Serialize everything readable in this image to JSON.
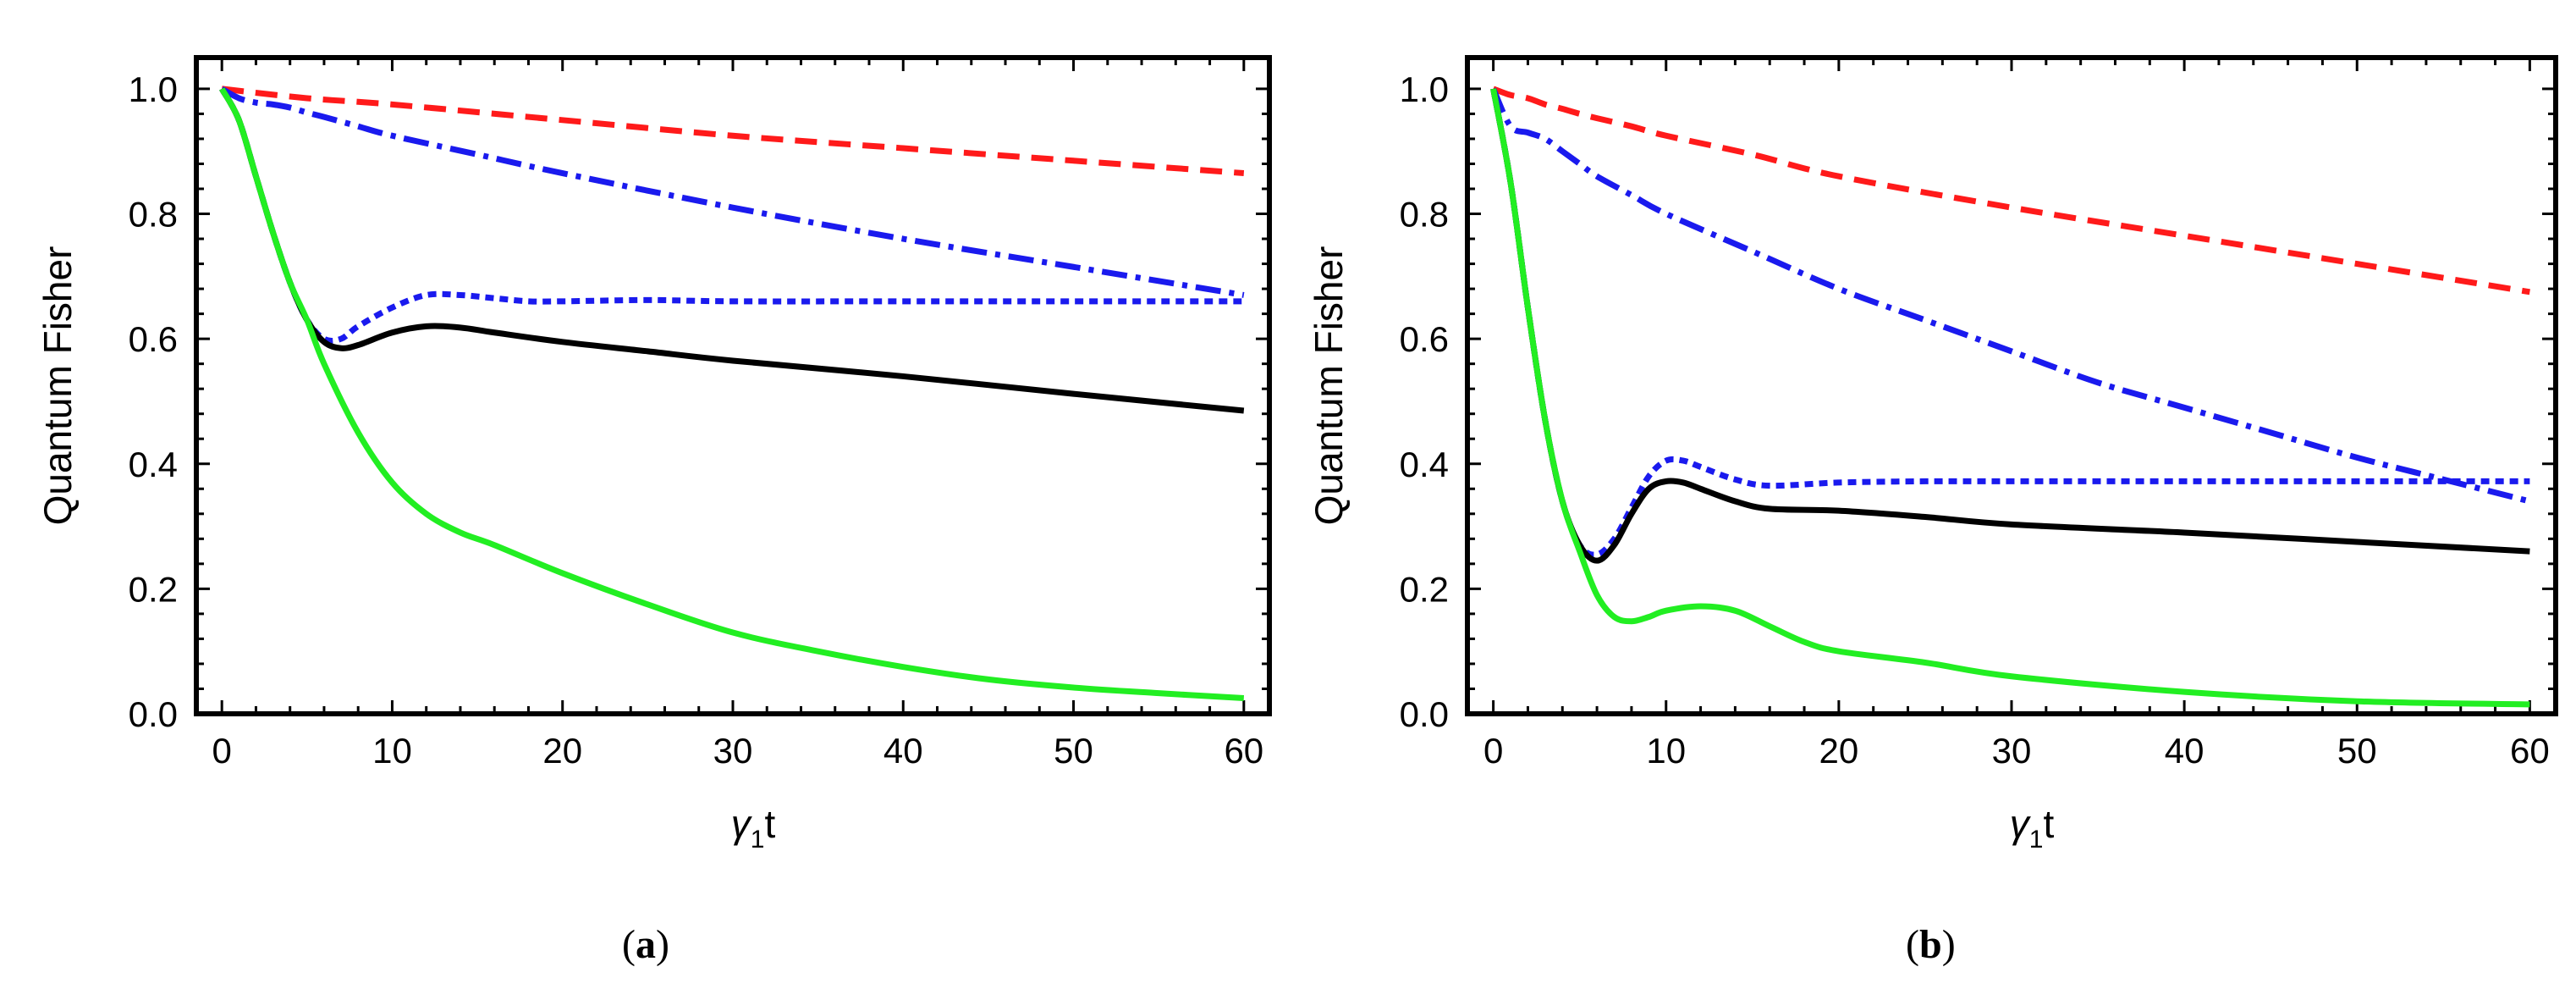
{
  "chart_data": [
    {
      "type": "line",
      "panel_label": "a",
      "xlabel_main": "γ",
      "xlabel_sub": "1",
      "xlabel_suffix": "t",
      "ylabel": "Quantum Fisher",
      "xlim": [
        -1.5,
        61.5
      ],
      "ylim": [
        0.0,
        1.05
      ],
      "xticks": [
        0,
        10,
        20,
        30,
        40,
        50,
        60
      ],
      "xtick_labels": [
        "0",
        "10",
        "20",
        "30",
        "40",
        "50",
        "60"
      ],
      "yticks": [
        0.0,
        0.2,
        0.4,
        0.6,
        0.8,
        1.0
      ],
      "ytick_labels": [
        "0.0",
        "0.2",
        "0.4",
        "0.6",
        "0.8",
        "1.0"
      ],
      "series": [
        {
          "name": "red-dashed",
          "color": "#ff1a1a",
          "style": "dashed",
          "x": [
            0,
            5,
            10,
            20,
            30,
            40,
            50,
            60
          ],
          "y": [
            1.0,
            0.985,
            0.975,
            0.95,
            0.925,
            0.905,
            0.885,
            0.865
          ]
        },
        {
          "name": "blue-dashdot",
          "color": "#1a1aee",
          "style": "dashdot",
          "x": [
            0,
            1,
            2,
            3,
            4,
            5,
            6,
            8,
            10,
            15,
            20,
            30,
            40,
            50,
            60
          ],
          "y": [
            1.0,
            0.985,
            0.978,
            0.975,
            0.97,
            0.962,
            0.955,
            0.94,
            0.925,
            0.895,
            0.865,
            0.81,
            0.76,
            0.715,
            0.67
          ]
        },
        {
          "name": "blue-dotted",
          "color": "#1a1aee",
          "style": "dotted",
          "x": [
            0,
            1,
            2,
            3,
            4,
            5,
            6,
            7,
            8,
            10,
            12,
            14,
            16,
            18,
            20,
            25,
            30,
            40,
            50,
            60
          ],
          "y": [
            1.0,
            0.95,
            0.86,
            0.77,
            0.69,
            0.63,
            0.6,
            0.6,
            0.62,
            0.65,
            0.67,
            0.67,
            0.665,
            0.66,
            0.66,
            0.662,
            0.66,
            0.66,
            0.66,
            0.66
          ]
        },
        {
          "name": "black-solid",
          "color": "#000000",
          "style": "solid",
          "x": [
            0,
            1,
            2,
            3,
            4,
            5,
            6,
            7,
            8,
            10,
            12,
            14,
            16,
            20,
            25,
            30,
            40,
            50,
            60
          ],
          "y": [
            1.0,
            0.95,
            0.86,
            0.77,
            0.69,
            0.63,
            0.595,
            0.585,
            0.59,
            0.61,
            0.62,
            0.618,
            0.61,
            0.595,
            0.58,
            0.565,
            0.54,
            0.512,
            0.485
          ]
        },
        {
          "name": "green-solid",
          "color": "#22ee22",
          "style": "solid",
          "x": [
            0,
            1,
            2,
            3,
            4,
            5,
            6,
            8,
            10,
            12,
            14,
            16,
            20,
            25,
            30,
            35,
            40,
            45,
            50,
            55,
            60
          ],
          "y": [
            1.0,
            0.95,
            0.86,
            0.77,
            0.69,
            0.63,
            0.56,
            0.45,
            0.37,
            0.32,
            0.29,
            0.27,
            0.225,
            0.175,
            0.13,
            0.1,
            0.075,
            0.055,
            0.042,
            0.033,
            0.025
          ]
        }
      ]
    },
    {
      "type": "line",
      "panel_label": "b",
      "xlabel_main": "γ",
      "xlabel_sub": "1",
      "xlabel_suffix": "t",
      "ylabel": "Quantum Fisher",
      "xlim": [
        -1.5,
        61.5
      ],
      "ylim": [
        0.0,
        1.05
      ],
      "xticks": [
        0,
        10,
        20,
        30,
        40,
        50,
        60
      ],
      "xtick_labels": [
        "0",
        "10",
        "20",
        "30",
        "40",
        "50",
        "60"
      ],
      "yticks": [
        0.0,
        0.2,
        0.4,
        0.6,
        0.8,
        1.0
      ],
      "ytick_labels": [
        "0.0",
        "0.2",
        "0.4",
        "0.6",
        "0.8",
        "1.0"
      ],
      "series": [
        {
          "name": "red-dashed",
          "color": "#ff1a1a",
          "style": "dashed",
          "x": [
            0,
            1,
            2,
            3,
            4,
            5,
            6,
            8,
            10,
            15,
            20,
            30,
            40,
            50,
            60
          ],
          "y": [
            1.0,
            0.99,
            0.985,
            0.975,
            0.968,
            0.96,
            0.953,
            0.94,
            0.925,
            0.895,
            0.86,
            0.81,
            0.765,
            0.72,
            0.675
          ]
        },
        {
          "name": "blue-dashdot",
          "color": "#1a1aee",
          "style": "dashdot",
          "x": [
            0,
            1,
            2,
            3,
            4,
            5,
            6,
            8,
            10,
            15,
            20,
            25,
            30,
            35,
            40,
            45,
            50,
            55,
            60
          ],
          "y": [
            1.0,
            0.94,
            0.93,
            0.92,
            0.9,
            0.88,
            0.86,
            0.83,
            0.8,
            0.74,
            0.68,
            0.63,
            0.58,
            0.53,
            0.49,
            0.45,
            0.41,
            0.375,
            0.34
          ]
        },
        {
          "name": "blue-dotted",
          "color": "#1a1aee",
          "style": "dotted",
          "x": [
            0,
            1,
            2,
            3,
            4,
            5,
            6,
            7,
            8,
            9,
            10,
            11,
            12,
            14,
            16,
            20,
            25,
            30,
            40,
            50,
            60
          ],
          "y": [
            1.0,
            0.85,
            0.65,
            0.47,
            0.34,
            0.27,
            0.255,
            0.28,
            0.33,
            0.38,
            0.405,
            0.405,
            0.395,
            0.375,
            0.365,
            0.37,
            0.372,
            0.372,
            0.372,
            0.372,
            0.372
          ]
        },
        {
          "name": "black-solid",
          "color": "#000000",
          "style": "solid",
          "x": [
            0,
            1,
            2,
            3,
            4,
            5,
            6,
            7,
            8,
            9,
            10,
            11,
            12,
            14,
            16,
            20,
            25,
            30,
            40,
            50,
            60
          ],
          "y": [
            1.0,
            0.85,
            0.65,
            0.47,
            0.34,
            0.27,
            0.245,
            0.27,
            0.32,
            0.36,
            0.372,
            0.37,
            0.36,
            0.34,
            0.328,
            0.325,
            0.315,
            0.303,
            0.29,
            0.275,
            0.26
          ]
        },
        {
          "name": "green-solid",
          "color": "#22ee22",
          "style": "solid",
          "x": [
            0,
            1,
            2,
            3,
            4,
            5,
            6,
            7,
            8,
            9,
            10,
            12,
            14,
            16,
            18,
            20,
            25,
            30,
            40,
            50,
            60
          ],
          "y": [
            1.0,
            0.85,
            0.65,
            0.47,
            0.34,
            0.26,
            0.19,
            0.155,
            0.148,
            0.155,
            0.165,
            0.172,
            0.165,
            0.14,
            0.115,
            0.1,
            0.082,
            0.06,
            0.035,
            0.02,
            0.015
          ]
        }
      ]
    }
  ]
}
